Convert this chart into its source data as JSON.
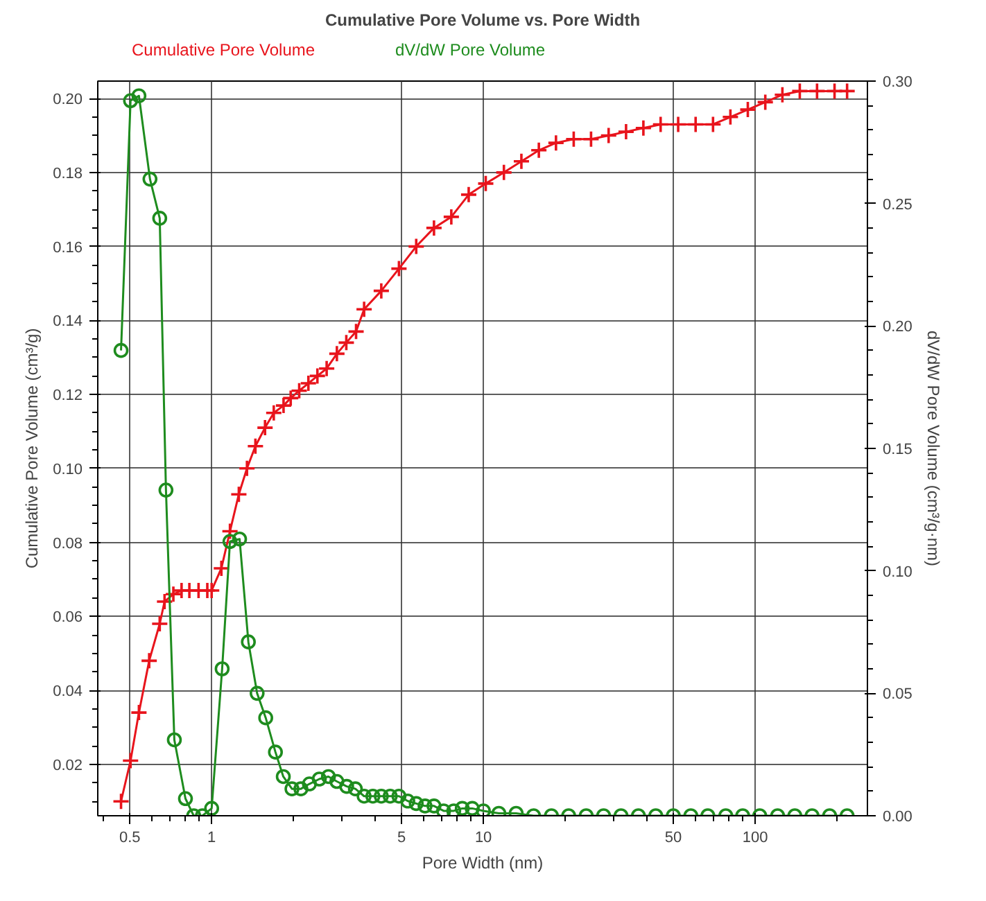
{
  "chart_data": {
    "type": "line",
    "title": "Cumulative Pore Volume vs. Pore Width",
    "xlabel": "Pore Width (nm)",
    "ylabel": "Cumulative Pore Volume (cm³/g)",
    "y2label": "dV/dW Pore Volume (cm³/g·nm)",
    "log": "x",
    "grid": true,
    "legend": "top left",
    "xlim": [
      0.381,
      259
    ],
    "xticks": [
      0.5,
      1,
      5,
      10,
      50,
      100
    ],
    "ylim": [
      0.0061,
      0.2047
    ],
    "yticks": [
      0.02,
      0.04,
      0.06,
      0.08,
      {
        "value": 0.1,
        "label": "0.10"
      },
      0.12,
      0.14,
      0.16,
      0.18,
      {
        "value": 0.2,
        "label": "0.20"
      }
    ],
    "y2lim": [
      0,
      0.3
    ],
    "y2ticks": [
      {
        "value": 0,
        "label": "0.00"
      },
      0.05,
      {
        "value": 0.1,
        "label": "0.10"
      },
      0.15,
      {
        "value": 0.2,
        "label": "0.20"
      },
      0.25,
      {
        "value": 0.3,
        "label": "0.30"
      }
    ],
    "series": [
      {
        "name": "Cumulative Pore Volume",
        "color": "#e8141c",
        "marker": "cross",
        "x": [
          0.464,
          0.503,
          0.54,
          0.589,
          0.644,
          0.671,
          0.723,
          0.775,
          0.828,
          0.895,
          0.964,
          1.0,
          1.086,
          1.168,
          1.259,
          1.349,
          1.449,
          1.572,
          1.693,
          1.839,
          1.954,
          2.1,
          2.27,
          2.45,
          2.65,
          2.89,
          3.13,
          3.4,
          3.64,
          4.21,
          4.89,
          5.66,
          6.58,
          7.62,
          8.83,
          10.2,
          11.9,
          13.8,
          16.0,
          18.5,
          21.5,
          24.9,
          28.9,
          33.5,
          38.8,
          44.9,
          52.1,
          60.4,
          70.0,
          81.1,
          94.0,
          109,
          126,
          146,
          169,
          196,
          218
        ],
        "values": [
          0.01,
          0.021,
          0.034,
          0.048,
          0.058,
          0.064,
          0.066,
          0.067,
          0.067,
          0.067,
          0.067,
          0.067,
          0.073,
          0.083,
          0.093,
          0.1,
          0.106,
          0.111,
          0.115,
          0.117,
          0.119,
          0.121,
          0.123,
          0.125,
          0.127,
          0.131,
          0.134,
          0.137,
          0.143,
          0.148,
          0.154,
          0.16,
          0.165,
          0.168,
          0.174,
          0.177,
          0.18,
          0.183,
          0.186,
          0.188,
          0.189,
          0.189,
          0.19,
          0.191,
          0.192,
          0.193,
          0.193,
          0.193,
          0.193,
          0.195,
          0.197,
          0.199,
          0.201,
          0.202,
          0.202,
          0.202,
          0.202
        ]
      },
      {
        "name": "dV/dW Pore Volume",
        "color": "#1e8c1e",
        "marker": "circle",
        "axis": "y2",
        "x": [
          0.464,
          0.503,
          0.54,
          0.593,
          0.644,
          0.679,
          0.729,
          0.801,
          0.859,
          0.925,
          1.0,
          1.093,
          1.168,
          1.267,
          1.365,
          1.47,
          1.581,
          1.717,
          1.835,
          1.975,
          2.13,
          2.29,
          2.49,
          2.69,
          2.89,
          3.14,
          3.38,
          3.64,
          3.92,
          4.21,
          4.54,
          4.89,
          5.27,
          5.66,
          6.1,
          6.58,
          7.14,
          7.78,
          8.36,
          9.1,
          10.0,
          11.4,
          13.2,
          15.3,
          17.8,
          20.6,
          23.9,
          27.7,
          32.1,
          37.2,
          43.1,
          50,
          58,
          67,
          78,
          90,
          104,
          121,
          140,
          162,
          188,
          218
        ],
        "values": [
          0.19,
          0.292,
          0.294,
          0.26,
          0.244,
          0.133,
          0.031,
          0.007,
          0.0,
          0.0,
          0.003,
          0.06,
          0.112,
          0.113,
          0.071,
          0.05,
          0.04,
          0.026,
          0.016,
          0.011,
          0.011,
          0.013,
          0.015,
          0.016,
          0.014,
          0.012,
          0.011,
          0.008,
          0.008,
          0.008,
          0.008,
          0.008,
          0.006,
          0.005,
          0.004,
          0.004,
          0.002,
          0.002,
          0.003,
          0.003,
          0.002,
          0.001,
          0.001,
          0.0,
          0.0,
          0.0,
          0.0,
          0.0,
          0.0,
          0.0,
          0.0,
          0.0,
          0.0,
          0.0,
          0.0,
          0.0,
          0.0,
          0.0,
          0.0,
          0.0,
          0.0,
          0.0
        ]
      }
    ]
  }
}
